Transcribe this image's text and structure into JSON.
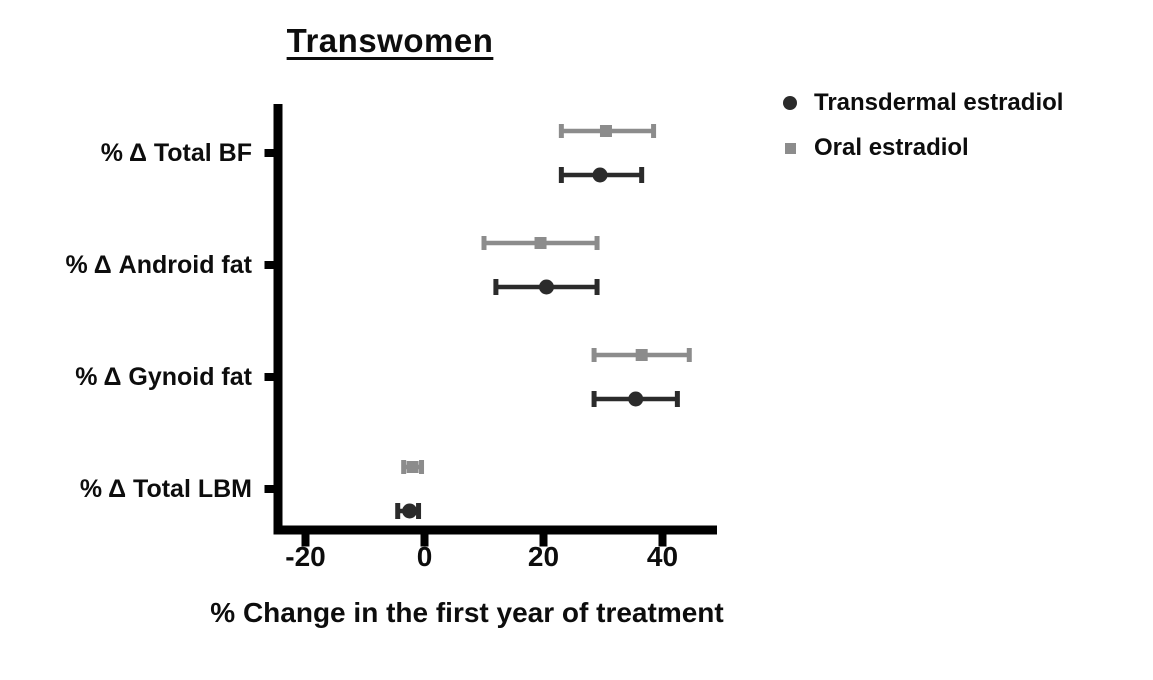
{
  "chart_data": {
    "type": "scatter",
    "subtype": "forest-plot-with-error-bars",
    "title": "Transwomen",
    "xlabel": "% Change in the first year of treatment",
    "ylabel": "",
    "categories": [
      "% Δ Total BF",
      "% Δ Android fat",
      "% Δ Gynoid fat",
      "% Δ Total LBM"
    ],
    "x_ticks": [
      -20,
      0,
      20,
      40
    ],
    "x_tick_labels": [
      "-20",
      "0",
      "20",
      "40"
    ],
    "xlim": [
      -25,
      49
    ],
    "grid": false,
    "legend_position": "top-right",
    "background_color": "#ffffff",
    "axis_color": "#000000",
    "text_color": "#0d0d0d",
    "series": [
      {
        "name": "Transdermal estradiol",
        "marker": "circle",
        "color": "#2b2b2b",
        "values": [
          29.5,
          20.5,
          35.5,
          -2.5
        ],
        "ci_low": [
          23,
          12,
          28.5,
          -4.5
        ],
        "ci_high": [
          36.5,
          29,
          42.5,
          -1
        ]
      },
      {
        "name": "Oral estradiol",
        "marker": "square",
        "color": "#8c8c8c",
        "values": [
          30.5,
          19.5,
          36.5,
          -2
        ],
        "ci_low": [
          23,
          10,
          28.5,
          -3.5
        ],
        "ci_high": [
          38.5,
          29,
          44.5,
          -0.5
        ]
      }
    ]
  }
}
